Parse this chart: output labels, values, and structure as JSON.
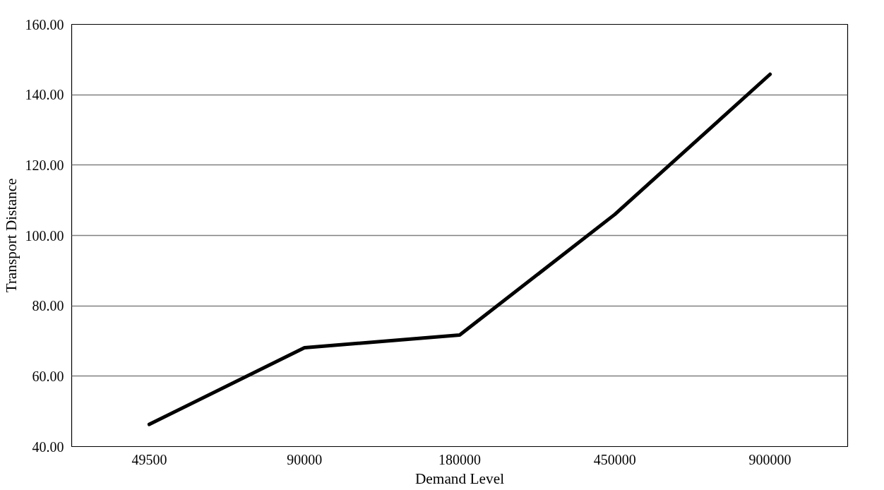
{
  "chart_data": {
    "type": "line",
    "xlabel": "Demand Level",
    "ylabel": "Transport Distance",
    "categories": [
      "49500",
      "90000",
      "180000",
      "450000",
      "900000"
    ],
    "series": [
      {
        "color": "#000000",
        "values": [
          46.3,
          68.1,
          71.7,
          106.0,
          145.8
        ]
      }
    ],
    "ylim": [
      40,
      160
    ],
    "yticks": [
      {
        "value": 40,
        "label": "40.00"
      },
      {
        "value": 60,
        "label": "60.00"
      },
      {
        "value": 80,
        "label": "80.00"
      },
      {
        "value": 100,
        "label": "100.00"
      },
      {
        "value": 120,
        "label": "120.00"
      },
      {
        "value": 140,
        "label": "140.00"
      },
      {
        "value": 160,
        "label": "160.00"
      }
    ],
    "grid": "y",
    "marker": "none",
    "line_style": "solid"
  }
}
